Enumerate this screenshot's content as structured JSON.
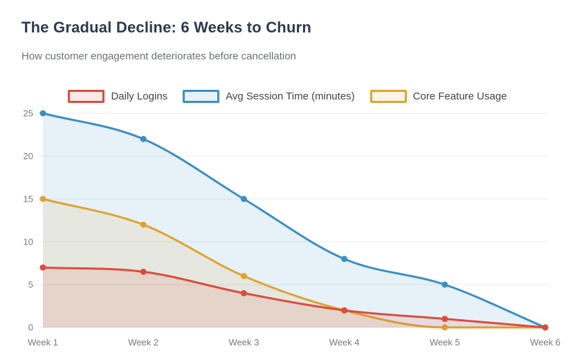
{
  "header": {
    "title": "The Gradual Decline: 6 Weeks to Churn",
    "subtitle": "How customer engagement deteriorates before cancellation"
  },
  "chart_data": {
    "type": "line",
    "title": "The Gradual Decline: 6 Weeks to Churn",
    "subtitle": "How customer engagement deteriorates before cancellation",
    "categories": [
      "Week 1",
      "Week 2",
      "Week 3",
      "Week 4",
      "Week 5",
      "Week 6"
    ],
    "series": [
      {
        "name": "Daily Logins",
        "values": [
          7,
          6.5,
          4,
          2,
          1,
          0
        ],
        "color": "#db4c3c",
        "fill_alpha": 0.12,
        "draw_order": 3
      },
      {
        "name": "Avg Session Time (minutes)",
        "values": [
          25,
          22,
          15,
          8,
          5,
          0
        ],
        "color": "#3a8ec6",
        "fill_alpha": 0.12,
        "draw_order": 1
      },
      {
        "name": "Core Feature Usage",
        "values": [
          15,
          12,
          6,
          2,
          0,
          0
        ],
        "color": "#e0a230",
        "fill_alpha": 0.12,
        "draw_order": 2
      }
    ],
    "ylim": [
      0,
      25
    ],
    "yticks": [
      0,
      5,
      10,
      15,
      20,
      25
    ],
    "grid": true,
    "legend_position": "top",
    "curve": "monotone",
    "area_fill": true,
    "point_radius": 4.5,
    "line_width": 3
  },
  "colors": {
    "title": "#2b3a4e",
    "subtitle": "#6b6f73",
    "axis_label": "#75787b",
    "grid": "#ebebeb",
    "background": "#ffffff"
  }
}
